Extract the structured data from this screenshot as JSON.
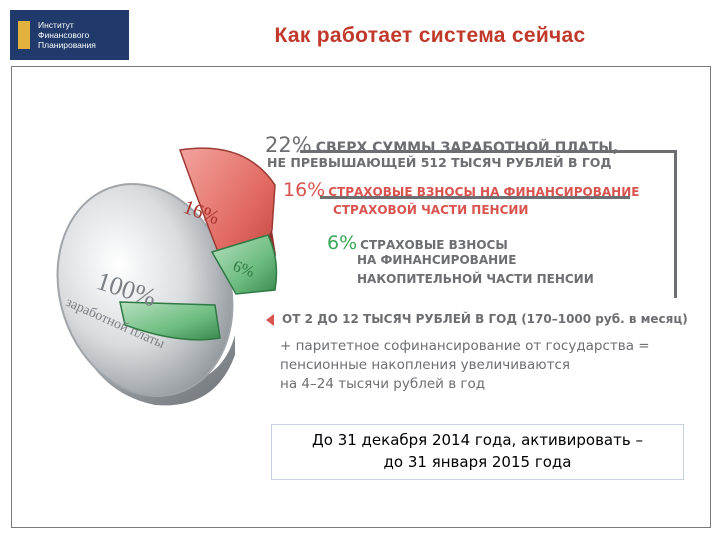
{
  "logo": {
    "line1": "Институт",
    "line2": "Финансового",
    "line3": "Планирования"
  },
  "title": "Как работает система сейчас",
  "infographic": {
    "coin": {
      "pct": "100%",
      "label": "заработной платы"
    },
    "red_slice_label": "16%",
    "green_slice_label": "6%",
    "line22": {
      "pct": "22%",
      "text_1": "СВЕРХ СУММЫ ЗАРАБОТНОЙ ПЛАТЫ,",
      "text_2": "НЕ ПРЕВЫШАЮЩЕЙ 512 ТЫСЯЧ РУБЛЕЙ В ГОД"
    },
    "line16": {
      "pct": "16%",
      "text_1": "СТРАХОВЫЕ ВЗНОСЫ НА ФИНАНСИРОВАНИЕ",
      "text_2": "СТРАХОВОЙ ЧАСТИ ПЕНСИИ"
    },
    "line6": {
      "pct": "6%",
      "text_1": "СТРАХОВЫЕ ВЗНОСЫ",
      "text_2": "НА ФИНАНСИРОВАНИЕ",
      "text_3": "НАКОПИТЕЛЬНОЙ ЧАСТИ ПЕНСИИ"
    },
    "range": "ОТ 2 ДО 12 ТЫСЯЧ РУБЛЕЙ В ГОД (170–1000 руб. в месяц)",
    "cofinancing": {
      "line1": "+ паритетное софинансирование от государства =",
      "line2": "пенсионные накопления увеличиваются",
      "line3": "на 4–24 тысячи рублей в год"
    }
  },
  "deadline": {
    "line1": "До 31 декабря 2014 года, активировать –",
    "line2": "до 31 января 2015 года"
  },
  "colors": {
    "title_red": "#c0392b",
    "logo_blue": "#1f3a6b",
    "accent_red": "#d9534f",
    "accent_green": "#3aa657",
    "text_gray": "#6d6e71"
  }
}
